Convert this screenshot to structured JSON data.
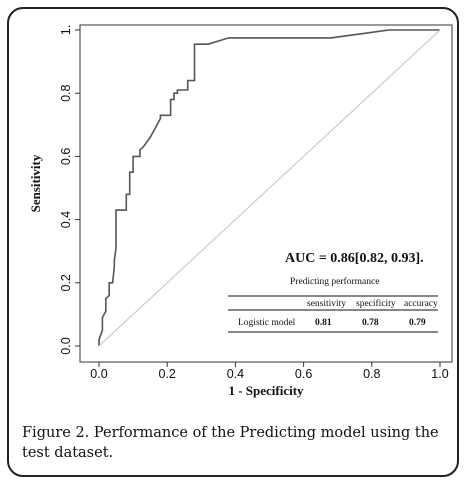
{
  "figure": {
    "caption": "Figure 2. Performance of the Predicting model using the test dataset."
  },
  "chart_data": {
    "type": "line",
    "xlabel": "1 - Specificity",
    "ylabel": "Sensitivity",
    "xlim": [
      0,
      1
    ],
    "ylim": [
      0,
      1
    ],
    "xticks": [
      "0.0",
      "0.2",
      "0.4",
      "0.6",
      "0.8",
      "1.0"
    ],
    "yticks": [
      "0.0",
      "0.2",
      "0.4",
      "0.6",
      "0.8",
      "1."
    ],
    "grid": false,
    "series": [
      {
        "color": "#555555",
        "x": [
          0,
          0.0,
          0.01,
          0.01,
          0.02,
          0.02,
          0.03,
          0.03,
          0.04,
          0.045,
          0.045,
          0.05,
          0.05,
          0.08,
          0.08,
          0.09,
          0.09,
          0.1,
          0.1,
          0.12,
          0.12,
          0.13,
          0.13,
          0.15,
          0.18,
          0.18,
          0.21,
          0.21,
          0.22,
          0.22,
          0.23,
          0.23,
          0.26,
          0.26,
          0.28,
          0.28,
          0.32,
          0.38,
          0.68,
          0.85,
          0.88,
          1.0
        ],
        "y": [
          0,
          0.02,
          0.05,
          0.09,
          0.11,
          0.15,
          0.16,
          0.2,
          0.2,
          0.25,
          0.27,
          0.31,
          0.43,
          0.43,
          0.48,
          0.48,
          0.55,
          0.55,
          0.6,
          0.6,
          0.62,
          0.63,
          0.63,
          0.66,
          0.72,
          0.73,
          0.73,
          0.78,
          0.78,
          0.8,
          0.8,
          0.81,
          0.81,
          0.84,
          0.84,
          0.955,
          0.955,
          0.975,
          0.975,
          1.0,
          1.0,
          1.0
        ]
      },
      {
        "color": "#cccccc",
        "x": [
          0,
          1
        ],
        "y": [
          0,
          1
        ]
      }
    ],
    "annotation": "AUC = 0.86[0.82, 0.93].",
    "table": {
      "title": "Predicting performance",
      "headers": [
        "sensitivity",
        "specificity",
        "accuracy"
      ],
      "row_label": "Logistic model",
      "values": [
        "0.81",
        "0.78",
        "0.79"
      ]
    }
  }
}
